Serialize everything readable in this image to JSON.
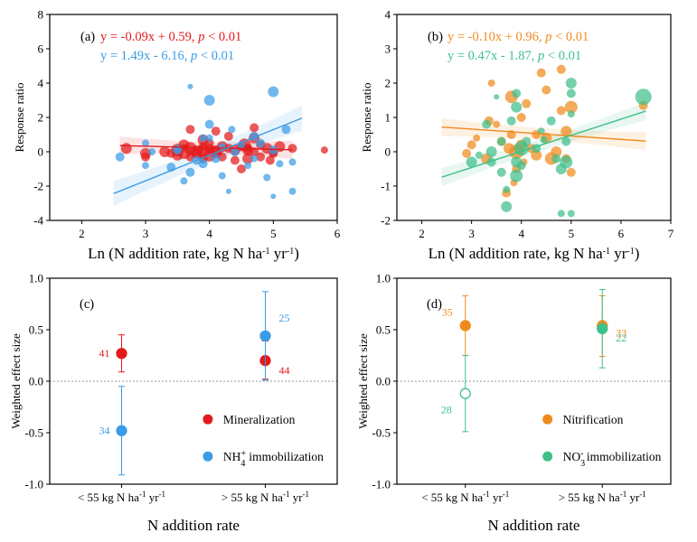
{
  "colors": {
    "red": "#e31a1c",
    "blue": "#3a9ce6",
    "orange": "#f08a1c",
    "green": "#3fbf8a"
  },
  "chart_data": [
    {
      "panel_label": "(a)",
      "type": "scatter",
      "xlabel": "Ln (N addition rate, kg N ha-1 yr-1)",
      "xlabel_main": "Ln (N addition rate, kg N ha",
      "xlabel_sup1": "-1",
      "xlabel_mid": " yr",
      "xlabel_sup2": "-1",
      "xlabel_end": ")",
      "ylabel": "Response ratio",
      "xlim": [
        1.5,
        6
      ],
      "ylim": [
        -4,
        8
      ],
      "xticks": [
        "2",
        "3",
        "4",
        "5",
        "6"
      ],
      "yticks": [
        "-4",
        "-2",
        "0",
        "2",
        "4",
        "6",
        "8"
      ],
      "equations": [
        {
          "prefix": "y = -0.09x + 0.59, ",
          "p": "p",
          "suffix": " < 0.01",
          "color": "#e31a1c"
        },
        {
          "prefix": "y = 1.49x - 6.16, ",
          "p": "p",
          "suffix": " < 0.01",
          "color": "#3a9ce6"
        }
      ],
      "series": [
        {
          "color": "#e31a1c",
          "fit": {
            "slope": -0.09,
            "intercept": 0.59,
            "x0": 2.6,
            "x1": 5.3
          },
          "points": [
            [
              2.7,
              0.2,
              6
            ],
            [
              3.0,
              -0.1,
              6
            ],
            [
              3.0,
              -0.3,
              5
            ],
            [
              3.4,
              -0.1,
              5
            ],
            [
              3.5,
              0.1,
              7
            ],
            [
              3.5,
              -0.2,
              6
            ],
            [
              3.6,
              0.0,
              8
            ],
            [
              3.6,
              0.4,
              6
            ],
            [
              3.7,
              -0.3,
              5
            ],
            [
              3.7,
              0.2,
              7
            ],
            [
              3.7,
              1.3,
              5
            ],
            [
              3.8,
              0.0,
              7
            ],
            [
              3.8,
              -0.1,
              6
            ],
            [
              3.9,
              0.3,
              5
            ],
            [
              3.9,
              -0.4,
              5
            ],
            [
              3.9,
              0.7,
              6
            ],
            [
              3.9,
              0.0,
              8
            ],
            [
              4.0,
              0.2,
              5
            ],
            [
              4.0,
              -0.2,
              7
            ],
            [
              4.0,
              0.5,
              5
            ],
            [
              4.1,
              0.0,
              6
            ],
            [
              4.1,
              1.2,
              5
            ],
            [
              4.2,
              0.3,
              6
            ],
            [
              4.2,
              -0.3,
              5
            ],
            [
              4.3,
              0.9,
              5
            ],
            [
              4.3,
              0.2,
              5
            ],
            [
              4.4,
              -0.5,
              5
            ],
            [
              4.4,
              0.1,
              6
            ],
            [
              4.5,
              -1.0,
              5
            ],
            [
              4.5,
              0.3,
              5
            ],
            [
              4.6,
              0.1,
              6
            ],
            [
              4.6,
              -0.4,
              6
            ],
            [
              4.6,
              0.2,
              5
            ],
            [
              4.7,
              1.4,
              5
            ],
            [
              4.7,
              0.8,
              6
            ],
            [
              4.7,
              0.0,
              5
            ],
            [
              4.8,
              -0.3,
              5
            ],
            [
              4.8,
              0.4,
              5
            ],
            [
              4.9,
              0.2,
              6
            ],
            [
              5.0,
              -0.1,
              5
            ],
            [
              5.0,
              0.0,
              5
            ],
            [
              5.1,
              0.3,
              6
            ],
            [
              5.3,
              0.2,
              5
            ],
            [
              5.8,
              0.1,
              4
            ],
            [
              4.1,
              0.0,
              7
            ],
            [
              3.3,
              0.0,
              6
            ],
            [
              4.95,
              -0.5,
              5
            ],
            [
              4.55,
              0.4,
              7
            ]
          ]
        },
        {
          "color": "#3a9ce6",
          "fit": {
            "slope": 1.49,
            "intercept": -6.16,
            "x0": 2.5,
            "x1": 5.45
          },
          "points": [
            [
              2.6,
              -0.3,
              5
            ],
            [
              3.0,
              0.5,
              4
            ],
            [
              3.0,
              -0.8,
              4
            ],
            [
              3.1,
              0.0,
              4
            ],
            [
              3.4,
              -0.9,
              5
            ],
            [
              3.5,
              0.2,
              4
            ],
            [
              3.6,
              -1.7,
              4
            ],
            [
              3.7,
              3.8,
              3
            ],
            [
              3.7,
              -1.2,
              5
            ],
            [
              3.8,
              -0.5,
              5
            ],
            [
              3.9,
              0.8,
              4
            ],
            [
              3.9,
              -0.7,
              5
            ],
            [
              4.0,
              3.0,
              6
            ],
            [
              4.0,
              1.6,
              5
            ],
            [
              4.0,
              0.8,
              4
            ],
            [
              4.1,
              -0.4,
              5
            ],
            [
              4.2,
              0.3,
              4
            ],
            [
              4.2,
              -1.4,
              4
            ],
            [
              4.3,
              -2.3,
              3
            ],
            [
              4.4,
              0.0,
              5
            ],
            [
              4.5,
              0.4,
              4
            ],
            [
              4.6,
              -0.8,
              4
            ],
            [
              4.7,
              0.9,
              5
            ],
            [
              4.7,
              -0.4,
              4
            ],
            [
              4.8,
              0.5,
              5
            ],
            [
              4.9,
              -1.5,
              4
            ],
            [
              5.0,
              -2.6,
              3
            ],
            [
              5.0,
              3.5,
              6
            ],
            [
              5.0,
              0.1,
              5
            ],
            [
              5.1,
              -0.7,
              4
            ],
            [
              5.2,
              1.3,
              5
            ],
            [
              5.3,
              -2.3,
              4
            ],
            [
              5.3,
              -0.6,
              4
            ],
            [
              4.35,
              1.3,
              4
            ],
            [
              3.5,
              0.1,
              5
            ]
          ]
        }
      ]
    },
    {
      "panel_label": "(b)",
      "type": "scatter",
      "xlabel": "Ln (N addition rate, kg N ha-1 yr-1)",
      "xlabel_main": "Ln (N addition rate, kg N ha",
      "xlabel_sup1": "-1",
      "xlabel_mid": " yr",
      "xlabel_sup2": "-1",
      "xlabel_end": ")",
      "ylabel": "Response ratio",
      "xlim": [
        1.5,
        7
      ],
      "ylim": [
        -2,
        4
      ],
      "xticks": [
        "2",
        "3",
        "4",
        "5",
        "6",
        "7"
      ],
      "yticks": [
        "-2",
        "-1",
        "0",
        "1",
        "2",
        "3",
        "4"
      ],
      "equations": [
        {
          "prefix": "y = -0.10x + 0.96, ",
          "p": "p",
          "suffix": " < 0.01",
          "color": "#f08a1c"
        },
        {
          "prefix": "y = 0.47x - 1.87, ",
          "p": "p",
          "suffix": " < 0.01",
          "color": "#3fbf8a"
        }
      ],
      "series": [
        {
          "color": "#f08a1c",
          "fit": {
            "slope": -0.1,
            "intercept": 0.96,
            "x0": 2.4,
            "x1": 6.5
          },
          "points": [
            [
              2.9,
              -0.05,
              5
            ],
            [
              3.0,
              0.2,
              5
            ],
            [
              3.1,
              0.4,
              4
            ],
            [
              3.3,
              -0.2,
              6
            ],
            [
              3.4,
              2.0,
              4
            ],
            [
              3.5,
              0.8,
              4
            ],
            [
              3.6,
              0.3,
              5
            ],
            [
              3.7,
              -1.2,
              5
            ],
            [
              3.75,
              0.1,
              6
            ],
            [
              3.8,
              1.6,
              7
            ],
            [
              3.8,
              0.5,
              5
            ],
            [
              3.9,
              0.0,
              8
            ],
            [
              3.9,
              -0.5,
              5
            ],
            [
              4.0,
              1.0,
              5
            ],
            [
              4.0,
              0.2,
              6
            ],
            [
              4.1,
              1.4,
              5
            ],
            [
              4.2,
              0.1,
              5
            ],
            [
              4.3,
              -0.1,
              6
            ],
            [
              4.3,
              0.5,
              5
            ],
            [
              4.4,
              2.3,
              5
            ],
            [
              4.5,
              0.4,
              6
            ],
            [
              4.5,
              1.8,
              5
            ],
            [
              4.6,
              -0.2,
              7
            ],
            [
              4.7,
              0.0,
              6
            ],
            [
              4.8,
              2.4,
              5
            ],
            [
              4.8,
              1.2,
              5
            ],
            [
              4.9,
              0.6,
              6
            ],
            [
              4.9,
              -0.2,
              5
            ],
            [
              5.0,
              1.3,
              7
            ],
            [
              5.0,
              -0.6,
              5
            ],
            [
              3.85,
              -0.9,
              4
            ],
            [
              4.05,
              -0.3,
              4
            ],
            [
              6.45,
              1.35,
              5
            ],
            [
              3.35,
              0.9,
              5
            ]
          ]
        },
        {
          "color": "#3fbf8a",
          "fit": {
            "slope": 0.47,
            "intercept": -1.87,
            "x0": 2.4,
            "x1": 6.5
          },
          "points": [
            [
              3.0,
              -0.3,
              6
            ],
            [
              3.3,
              0.8,
              5
            ],
            [
              3.4,
              0.0,
              6
            ],
            [
              3.4,
              -0.3,
              5
            ],
            [
              3.5,
              1.6,
              3
            ],
            [
              3.6,
              0.3,
              5
            ],
            [
              3.6,
              -0.6,
              5
            ],
            [
              3.7,
              -1.6,
              6
            ],
            [
              3.7,
              -1.1,
              4
            ],
            [
              3.8,
              0.9,
              5
            ],
            [
              3.9,
              1.3,
              6
            ],
            [
              3.9,
              1.7,
              5
            ],
            [
              3.9,
              -0.7,
              7
            ],
            [
              3.9,
              -0.3,
              6
            ],
            [
              4.0,
              0.1,
              8
            ],
            [
              4.0,
              -0.4,
              5
            ],
            [
              4.1,
              0.3,
              5
            ],
            [
              4.3,
              0.1,
              5
            ],
            [
              4.4,
              0.6,
              4
            ],
            [
              4.6,
              0.9,
              5
            ],
            [
              4.7,
              -0.2,
              5
            ],
            [
              4.8,
              -0.5,
              6
            ],
            [
              4.9,
              -0.3,
              7
            ],
            [
              4.9,
              0.3,
              5
            ],
            [
              5.0,
              2.0,
              6
            ],
            [
              5.0,
              1.7,
              5
            ],
            [
              5.0,
              1.1,
              4
            ],
            [
              5.0,
              -1.8,
              4
            ],
            [
              4.8,
              -1.8,
              4
            ],
            [
              6.45,
              1.6,
              9
            ],
            [
              3.15,
              -0.1,
              4
            ],
            [
              4.45,
              0.35,
              4
            ]
          ]
        }
      ]
    },
    {
      "panel_label": "(c)",
      "type": "scatter",
      "xlabel": "N addition rate",
      "ylabel": "Weighted effect size",
      "ylim": [
        -1.0,
        1.0
      ],
      "yticks": [
        "-1.0",
        "-0.5",
        "0.0",
        "0.5",
        "1.0"
      ],
      "categories": [
        {
          "label": "< 55 kg N ha",
          "sup1": "-1",
          "mid": " yr",
          "sup2": "-1"
        },
        {
          "label": "> 55 kg N ha",
          "sup1": "-1",
          "mid": " yr",
          "sup2": "-1"
        }
      ],
      "series": [
        {
          "name": "Mineralization",
          "color": "#e31a1c",
          "filled": true,
          "values": [
            0.27,
            0.2
          ],
          "ci": [
            [
              0.09,
              0.45
            ],
            [
              0.02,
              0.39
            ]
          ],
          "n": [
            "41",
            "44"
          ]
        },
        {
          "name_main": "NH",
          "name_sub": "4",
          "name_sup": "+",
          "name_end": " immobilization",
          "color": "#3a9ce6",
          "filled": true,
          "values": [
            -0.48,
            0.44
          ],
          "ci": [
            [
              -0.91,
              -0.05
            ],
            [
              0.01,
              0.87
            ]
          ],
          "n": [
            "34",
            "25"
          ]
        }
      ]
    },
    {
      "panel_label": "(d)",
      "type": "scatter",
      "xlabel": "N addition rate",
      "ylabel": "Weighted effect size",
      "ylim": [
        -1.0,
        1.0
      ],
      "yticks": [
        "-1.0",
        "-0.5",
        "0.0",
        "0.5",
        "1.0"
      ],
      "categories": [
        {
          "label": "< 55 kg N ha",
          "sup1": "-1",
          "mid": " yr",
          "sup2": "-1"
        },
        {
          "label": "> 55 kg N ha",
          "sup1": "-1",
          "mid": " yr",
          "sup2": "-1"
        }
      ],
      "series": [
        {
          "name": "Nitrification",
          "color": "#f08a1c",
          "filled": true,
          "values": [
            0.54,
            0.54
          ],
          "ci": [
            [
              0.25,
              0.83
            ],
            [
              0.24,
              0.83
            ]
          ],
          "n": [
            "35",
            "33"
          ]
        },
        {
          "name_main": "NO",
          "name_sub": "3",
          "name_sup": "-",
          "name_end": " immobilization",
          "color": "#3fbf8a",
          "filled": [
            false,
            true
          ],
          "values": [
            -0.12,
            0.51
          ],
          "ci": [
            [
              -0.49,
              0.25
            ],
            [
              0.13,
              0.89
            ]
          ],
          "n": [
            "28",
            "22"
          ]
        }
      ]
    }
  ]
}
